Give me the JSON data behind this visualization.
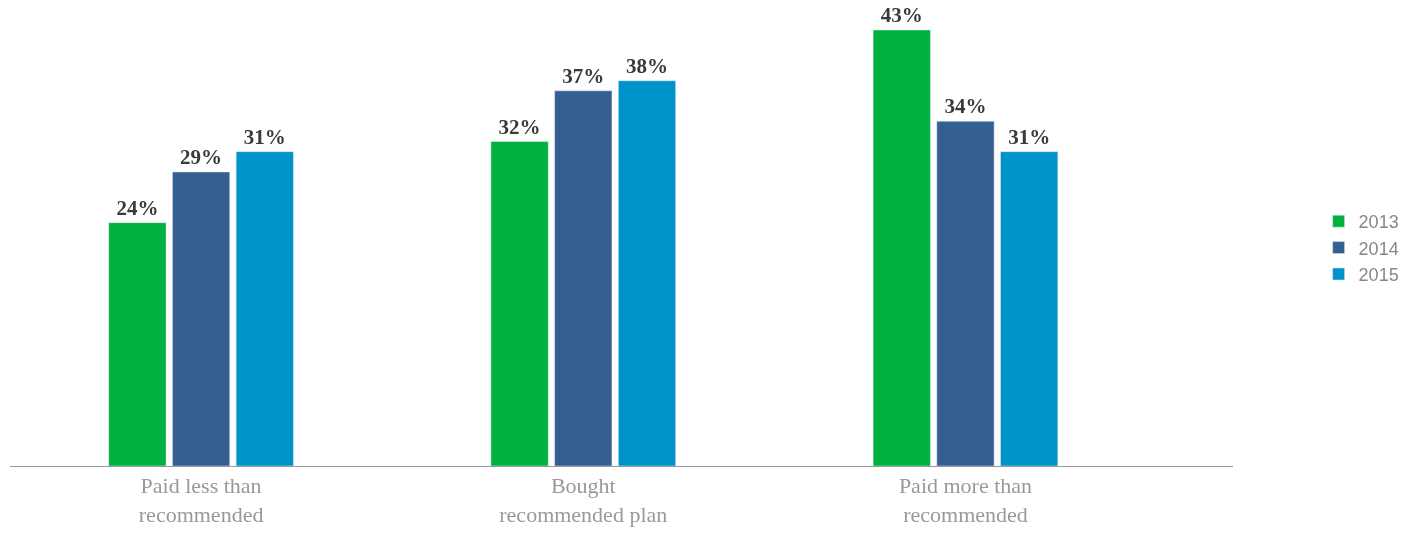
{
  "chart_data": {
    "type": "bar",
    "categories": [
      "Paid less than recommended",
      "Bought recommended plan",
      "Paid more than recommended"
    ],
    "series": [
      {
        "name": "2013",
        "color": "#00b140",
        "values": [
          24,
          32,
          43
        ],
        "value_labels": [
          "24%",
          "32%",
          "43%"
        ]
      },
      {
        "name": "2014",
        "color": "#355e91",
        "values": [
          29,
          37,
          34
        ],
        "value_labels": [
          "29%",
          "37%",
          "34%"
        ]
      },
      {
        "name": "2015",
        "color": "#0093c9",
        "values": [
          31,
          38,
          31
        ],
        "value_labels": [
          "31%",
          "38%",
          "31%"
        ]
      }
    ],
    "legend": "right"
  }
}
